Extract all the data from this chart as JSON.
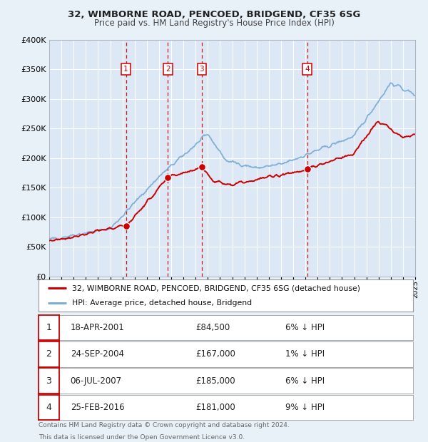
{
  "title1": "32, WIMBORNE ROAD, PENCOED, BRIDGEND, CF35 6SG",
  "title2": "Price paid vs. HM Land Registry's House Price Index (HPI)",
  "legend_label1": "32, WIMBORNE ROAD, PENCOED, BRIDGEND, CF35 6SG (detached house)",
  "legend_label2": "HPI: Average price, detached house, Bridgend",
  "transactions": [
    {
      "num": 1,
      "x": 2001.29,
      "price": 84500,
      "pct": "6% ↓ HPI",
      "date_str": "18-APR-2001"
    },
    {
      "num": 2,
      "x": 2004.73,
      "price": 167000,
      "pct": "1% ↓ HPI",
      "date_str": "24-SEP-2004"
    },
    {
      "num": 3,
      "x": 2007.51,
      "price": 185000,
      "pct": "6% ↓ HPI",
      "date_str": "06-JUL-2007"
    },
    {
      "num": 4,
      "x": 2016.15,
      "price": 181000,
      "pct": "9% ↓ HPI",
      "date_str": "25-FEB-2016"
    }
  ],
  "vline_color": "#cc0000",
  "sale_dot_color": "#cc0000",
  "hpi_line_color": "#7dadd4",
  "price_line_color": "#cc0000",
  "background_color": "#e8f0f8",
  "plot_bg_color": "#dce8f5",
  "grid_color": "#c8d8e8",
  "xlim": [
    1995,
    2025
  ],
  "ylim": [
    0,
    400000
  ],
  "yticks": [
    0,
    50000,
    100000,
    150000,
    200000,
    250000,
    300000,
    350000,
    400000
  ],
  "ytick_labels": [
    "£0",
    "£50K",
    "£100K",
    "£150K",
    "£200K",
    "£250K",
    "£300K",
    "£350K",
    "£400K"
  ],
  "footer1": "Contains HM Land Registry data © Crown copyright and database right 2024.",
  "footer2": "This data is licensed under the Open Government Licence v3.0.",
  "footnote_color": "#666666"
}
